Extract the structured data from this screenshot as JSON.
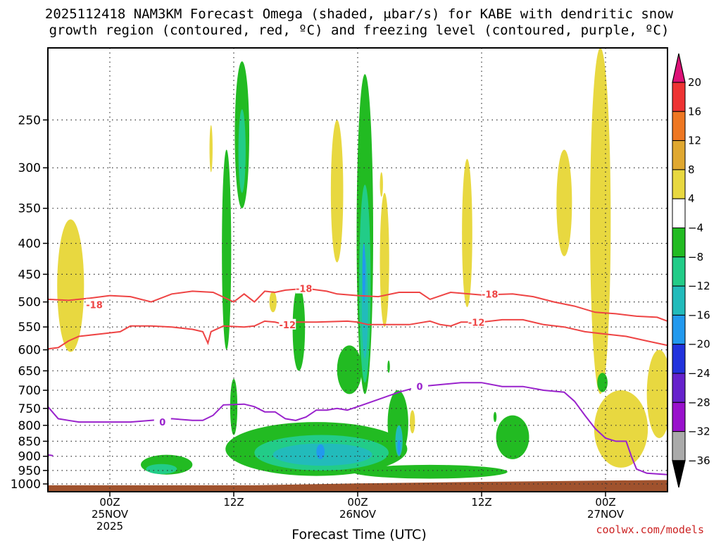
{
  "chart_data": {
    "type": "heatmap",
    "title_lines": [
      "2025112418 NAM3KM Forecast Omega (shaded, μbar/s) for KABE with dendritic snow",
      "growth region (contoured, red, ºC) and freezing level (contoured, purple, ºC)"
    ],
    "xlabel": "Forecast Time (UTC)",
    "credit": "coolwx.com/models",
    "xlim": [
      18,
      78
    ],
    "ylim": [
      1030,
      190
    ],
    "y_ticks": [
      250,
      300,
      350,
      400,
      450,
      500,
      550,
      600,
      650,
      700,
      750,
      800,
      850,
      900,
      950,
      1000
    ],
    "x_ticks": [
      {
        "hour": 24,
        "lines": [
          "00Z",
          "25NOV",
          "2025"
        ]
      },
      {
        "hour": 36,
        "lines": [
          "12Z"
        ]
      },
      {
        "hour": 48,
        "lines": [
          "00Z",
          "26NOV"
        ]
      },
      {
        "hour": 60,
        "lines": [
          "12Z"
        ]
      },
      {
        "hour": 72,
        "lines": [
          "00Z",
          "27NOV"
        ]
      }
    ],
    "colorbar": {
      "labels": [
        "20",
        "16",
        "12",
        "8",
        "4",
        "−4",
        "−8",
        "−12",
        "−16",
        "−20",
        "−24",
        "−28",
        "−32",
        "−36"
      ],
      "colors": [
        "#ee3333",
        "#ee7722",
        "#e0a830",
        "#e8d840",
        "#ffffff",
        "#22bb22",
        "#22cc88",
        "#22bbbb",
        "#2299ee",
        "#2233dd",
        "#6622cc",
        "#9911cc",
        "#aaaaaa"
      ],
      "over_color": "#dd1177",
      "under_color": "#000000"
    },
    "omega_features": [
      {
        "name": "early-updraft-column",
        "level": 4,
        "center": [
          20.2,
          485
        ],
        "half_width": [
          1.3,
          120
        ]
      },
      {
        "name": "pre-12z-positive-blob",
        "level": 4,
        "center": [
          33.8,
          280
        ],
        "half_width": [
          0.15,
          25
        ]
      },
      {
        "name": "low-level-descent-0z",
        "level": -4,
        "center": [
          29.5,
          930
        ],
        "half_width": [
          2.5,
          35
        ]
      },
      {
        "name": "low-level-descent-core",
        "level": -8,
        "center": [
          29.0,
          945
        ],
        "half_width": [
          1.5,
          18
        ]
      },
      {
        "name": "upper-column-12z",
        "level": -4,
        "center": [
          36.8,
          275
        ],
        "half_width": [
          0.7,
          75
        ]
      },
      {
        "name": "upper-column-12z-core",
        "level": -8,
        "center": [
          36.8,
          285
        ],
        "half_width": [
          0.35,
          45
        ]
      },
      {
        "name": "column-11z",
        "level": -4,
        "center": [
          35.3,
          440
        ],
        "half_width": [
          0.45,
          160
        ]
      },
      {
        "name": "column-11z-lower",
        "level": -4,
        "center": [
          36.0,
          750
        ],
        "half_width": [
          0.35,
          80
        ]
      },
      {
        "name": "column-18z",
        "level": -4,
        "center": [
          42.3,
          560
        ],
        "half_width": [
          0.6,
          90
        ]
      },
      {
        "name": "positive-18z",
        "level": 4,
        "center": [
          39.8,
          500
        ],
        "half_width": [
          0.35,
          20
        ]
      },
      {
        "name": "positive-upper-22z",
        "level": 4,
        "center": [
          46.0,
          340
        ],
        "half_width": [
          0.6,
          90
        ]
      },
      {
        "name": "main-column-00z",
        "level": -4,
        "center": [
          48.7,
          460
        ],
        "half_width": [
          0.8,
          250
        ]
      },
      {
        "name": "main-column-00z-mid",
        "level": -8,
        "center": [
          48.7,
          500
        ],
        "half_width": [
          0.55,
          180
        ]
      },
      {
        "name": "main-column-00z-core",
        "level": -12,
        "center": [
          48.7,
          520
        ],
        "half_width": [
          0.3,
          100
        ]
      },
      {
        "name": "main-column-00z-peak",
        "level": -16,
        "center": [
          48.6,
          450
        ],
        "half_width": [
          0.15,
          50
        ]
      },
      {
        "name": "column-23z-low",
        "level": -4,
        "center": [
          47.2,
          650
        ],
        "half_width": [
          1.2,
          60
        ]
      },
      {
        "name": "positive-02z",
        "level": 4,
        "center": [
          50.6,
          440
        ],
        "half_width": [
          0.45,
          110
        ]
      },
      {
        "name": "positive-02z-top",
        "level": 4,
        "center": [
          50.3,
          320
        ],
        "half_width": [
          0.15,
          15
        ]
      },
      {
        "name": "broad-low-level-descent",
        "level": -4,
        "center": [
          44.0,
          880
        ],
        "half_width": [
          8.8,
          90
        ]
      },
      {
        "name": "broad-low-level-mid",
        "level": -8,
        "center": [
          44.5,
          890
        ],
        "half_width": [
          6.5,
          60
        ]
      },
      {
        "name": "broad-low-level-core",
        "level": -12,
        "center": [
          44.6,
          895
        ],
        "half_width": [
          4.8,
          38
        ]
      },
      {
        "name": "broad-low-level-peak",
        "level": -16,
        "center": [
          44.4,
          885
        ],
        "half_width": [
          0.4,
          25
        ]
      },
      {
        "name": "low-level-tail",
        "level": -4,
        "center": [
          55.0,
          955
        ],
        "half_width": [
          7.5,
          25
        ]
      },
      {
        "name": "descent-04z",
        "level": -4,
        "center": [
          51.9,
          800
        ],
        "half_width": [
          1.0,
          100
        ]
      },
      {
        "name": "descent-04z-core",
        "level": -12,
        "center": [
          52.0,
          850
        ],
        "half_width": [
          0.35,
          50
        ]
      },
      {
        "name": "descent-04z-peak",
        "level": -16,
        "center": [
          52.0,
          870
        ],
        "half_width": [
          0.15,
          25
        ]
      },
      {
        "name": "small-descent-04z",
        "level": -4,
        "center": [
          51.0,
          640
        ],
        "half_width": [
          0.12,
          15
        ]
      },
      {
        "name": "positive-05z",
        "level": 4,
        "center": [
          53.3,
          790
        ],
        "half_width": [
          0.25,
          35
        ]
      },
      {
        "name": "positive-10z",
        "level": 4,
        "center": [
          58.6,
          400
        ],
        "half_width": [
          0.5,
          110
        ]
      },
      {
        "name": "descent-15z",
        "level": -4,
        "center": [
          63.0,
          840
        ],
        "half_width": [
          1.6,
          70
        ]
      },
      {
        "name": "descent-13z-dot",
        "level": -4,
        "center": [
          61.3,
          775
        ],
        "half_width": [
          0.15,
          15
        ]
      },
      {
        "name": "positive-20z-upper",
        "level": 4,
        "center": [
          68.0,
          350
        ],
        "half_width": [
          0.75,
          70
        ]
      },
      {
        "name": "positive-23z-column",
        "level": 4,
        "center": [
          71.5,
          450
        ],
        "half_width": [
          1.0,
          260
        ]
      },
      {
        "name": "positive-00z-core",
        "level": 8,
        "center": [
          71.8,
          560
        ],
        "half_width": [
          0.2,
          60
        ]
      },
      {
        "name": "positive-00z-lower",
        "level": 4,
        "center": [
          73.5,
          820
        ],
        "half_width": [
          2.6,
          120
        ]
      },
      {
        "name": "positive-00z-lower-core",
        "level": 8,
        "center": [
          72.5,
          820
        ],
        "half_width": [
          1.3,
          45
        ]
      },
      {
        "name": "positive-03z-edge",
        "level": 4,
        "center": [
          77.2,
          720
        ],
        "half_width": [
          1.2,
          120
        ]
      },
      {
        "name": "positive-03z-edge-core",
        "level": 8,
        "center": [
          77.7,
          740
        ],
        "half_width": [
          0.3,
          30
        ]
      },
      {
        "name": "descent-00z-small",
        "level": -4,
        "center": [
          71.7,
          680
        ],
        "half_width": [
          0.5,
          25
        ]
      }
    ],
    "dgz_contours": [
      {
        "label": "-18",
        "label_at": [
          {
            "hour": 22.5,
            "p": 505
          },
          {
            "hour": 42.8,
            "p": 475
          },
          {
            "hour": 60.8,
            "p": 485
          }
        ],
        "points": [
          [
            18,
            495
          ],
          [
            20,
            497
          ],
          [
            22,
            493
          ],
          [
            24,
            488
          ],
          [
            26,
            490
          ],
          [
            28,
            500
          ],
          [
            30,
            485
          ],
          [
            32,
            480
          ],
          [
            34,
            482
          ],
          [
            36,
            500
          ],
          [
            37,
            485
          ],
          [
            38,
            500
          ],
          [
            39,
            480
          ],
          [
            40,
            482
          ],
          [
            41,
            478
          ],
          [
            43,
            475
          ],
          [
            45,
            480
          ],
          [
            46,
            485
          ],
          [
            48,
            488
          ],
          [
            50,
            490
          ],
          [
            52,
            482
          ],
          [
            54,
            482
          ],
          [
            55,
            495
          ],
          [
            57,
            482
          ],
          [
            60,
            487
          ],
          [
            63,
            485
          ],
          [
            65,
            490
          ],
          [
            67,
            500
          ],
          [
            69,
            508
          ],
          [
            71,
            520
          ],
          [
            73,
            523
          ],
          [
            75,
            528
          ],
          [
            77,
            530
          ],
          [
            78,
            538
          ]
        ]
      },
      {
        "label": "-12",
        "label_at": [
          {
            "hour": 41.2,
            "p": 545
          },
          {
            "hour": 59.5,
            "p": 540
          }
        ],
        "points": [
          [
            18,
            598
          ],
          [
            19,
            595
          ],
          [
            20,
            580
          ],
          [
            21,
            570
          ],
          [
            23,
            565
          ],
          [
            25,
            560
          ],
          [
            26,
            548
          ],
          [
            28,
            548
          ],
          [
            30,
            550
          ],
          [
            32,
            555
          ],
          [
            33,
            560
          ],
          [
            33.5,
            585
          ],
          [
            33.8,
            560
          ],
          [
            35,
            548
          ],
          [
            37,
            550
          ],
          [
            38,
            548
          ],
          [
            39,
            538
          ],
          [
            40,
            540
          ],
          [
            41,
            545
          ],
          [
            42,
            540
          ],
          [
            44,
            540
          ],
          [
            47,
            538
          ],
          [
            48,
            540
          ],
          [
            49,
            545
          ],
          [
            51,
            545
          ],
          [
            53,
            545
          ],
          [
            55,
            538
          ],
          [
            56,
            545
          ],
          [
            57,
            548
          ],
          [
            58,
            540
          ],
          [
            60,
            540
          ],
          [
            62,
            535
          ],
          [
            64,
            535
          ],
          [
            66,
            545
          ],
          [
            68,
            550
          ],
          [
            70,
            560
          ],
          [
            72,
            565
          ],
          [
            74,
            570
          ],
          [
            76,
            580
          ],
          [
            78,
            590
          ]
        ]
      }
    ],
    "freezing_level": {
      "label": "0",
      "label_at": [
        {
          "hour": 29.1,
          "p": 790
        },
        {
          "hour": 54.0,
          "p": 690
        }
      ],
      "points": [
        [
          18,
          745
        ],
        [
          19,
          780
        ],
        [
          20,
          785
        ],
        [
          21,
          790
        ],
        [
          24,
          790
        ],
        [
          26,
          790
        ],
        [
          28,
          785
        ],
        [
          30,
          780
        ],
        [
          32,
          785
        ],
        [
          33,
          785
        ],
        [
          34,
          770
        ],
        [
          35,
          740
        ],
        [
          37,
          738
        ],
        [
          38,
          745
        ],
        [
          39,
          760
        ],
        [
          40,
          760
        ],
        [
          41,
          780
        ],
        [
          42,
          785
        ],
        [
          43,
          775
        ],
        [
          44,
          755
        ],
        [
          45,
          755
        ],
        [
          46,
          750
        ],
        [
          47,
          755
        ],
        [
          48,
          745
        ],
        [
          50,
          725
        ],
        [
          52,
          705
        ],
        [
          54,
          690
        ],
        [
          56,
          685
        ],
        [
          58,
          680
        ],
        [
          60,
          680
        ],
        [
          62,
          690
        ],
        [
          64,
          690
        ],
        [
          66,
          700
        ],
        [
          68,
          705
        ],
        [
          69,
          730
        ],
        [
          70,
          770
        ],
        [
          71,
          810
        ],
        [
          72,
          840
        ],
        [
          73,
          850
        ],
        [
          74,
          850
        ],
        [
          74.5,
          900
        ],
        [
          75,
          945
        ],
        [
          76,
          960
        ],
        [
          78,
          965
        ]
      ]
    },
    "freezing_level_segment_left": [
      [
        18,
        895
      ],
      [
        18.5,
        898
      ]
    ],
    "terrain": {
      "color": "#a0522d",
      "surface": [
        [
          18,
          1005
        ],
        [
          38,
          1005
        ],
        [
          48,
          998
        ],
        [
          60,
          992
        ],
        [
          78,
          985
        ]
      ]
    }
  }
}
